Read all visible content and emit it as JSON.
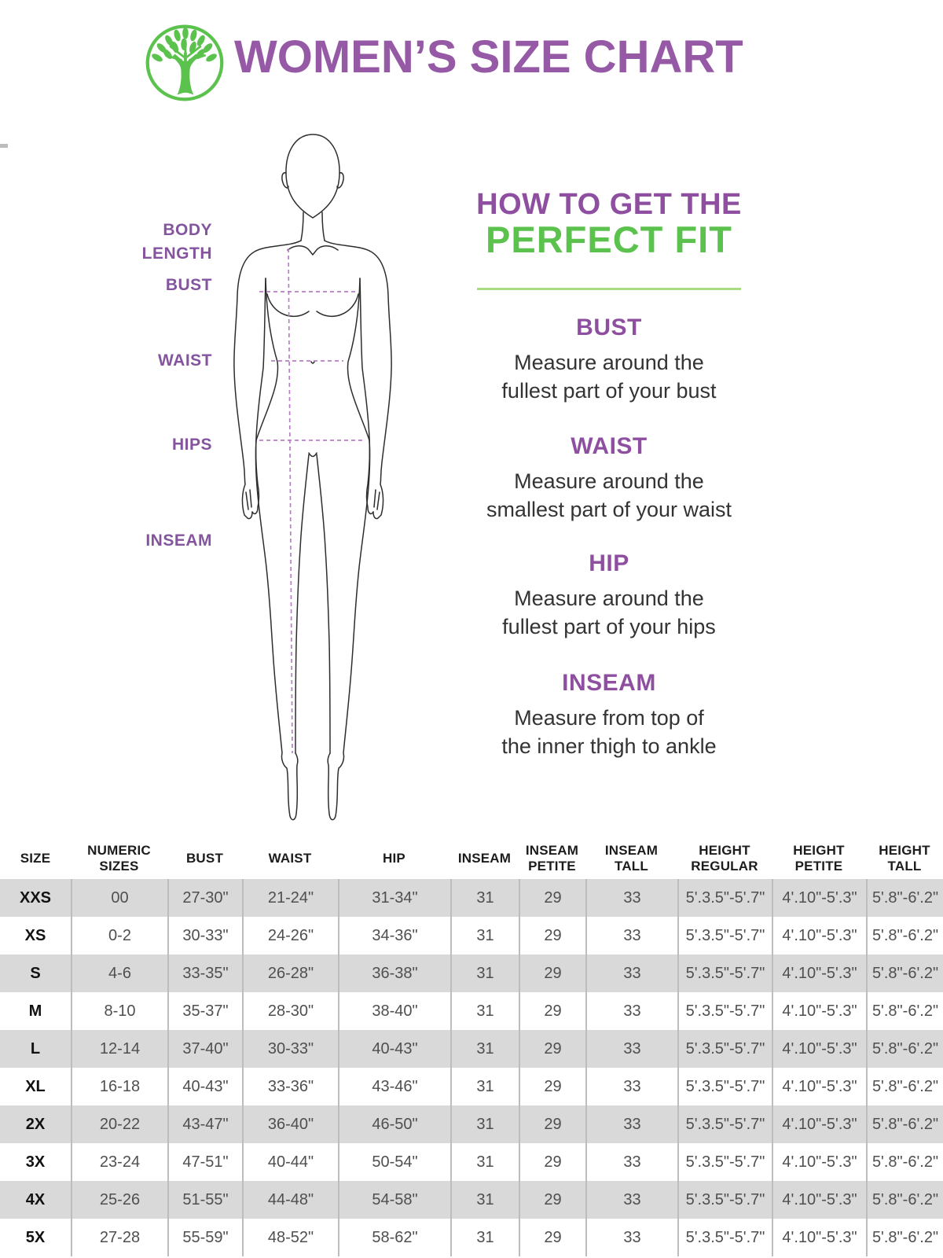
{
  "header": {
    "logo": "tree-in-circle-logo",
    "title": "WOMEN’S SIZE CHART"
  },
  "figure": {
    "labels": [
      "BODY LENGTH",
      "BUST",
      "WAIST",
      "HIPS",
      "INSEAM"
    ]
  },
  "howto": {
    "title_line1": "HOW TO GET THE",
    "title_line2": "PERFECT FIT",
    "sections": [
      {
        "heading": "BUST",
        "body": "Measure around the\nfullest part of your bust"
      },
      {
        "heading": "WAIST",
        "body": "Measure around the\nsmallest part of your waist"
      },
      {
        "heading": "HIP",
        "body": "Measure around the\nfullest part of your hips"
      },
      {
        "heading": "INSEAM",
        "body": "Measure from top of\nthe inner thigh to ankle"
      }
    ]
  },
  "table": {
    "columns": [
      "SIZE",
      "NUMERIC\nSIZES",
      "BUST",
      "WAIST",
      "HIP",
      "INSEAM",
      "INSEAM\nPETITE",
      "INSEAM\nTALL",
      "HEIGHT\nREGULAR",
      "HEIGHT\nPETITE",
      "HEIGHT\nTALL"
    ],
    "rows": [
      [
        "XXS",
        "00",
        "27-30\"",
        "21-24\"",
        "31-34\"",
        "31",
        "29",
        "33",
        "5'.3.5\"-5'.7\"",
        "4'.10\"-5'.3\"",
        "5'.8\"-6'.2\""
      ],
      [
        "XS",
        "0-2",
        "30-33\"",
        "24-26\"",
        "34-36\"",
        "31",
        "29",
        "33",
        "5'.3.5\"-5'.7\"",
        "4'.10\"-5'.3\"",
        "5'.8\"-6'.2\""
      ],
      [
        "S",
        "4-6",
        "33-35\"",
        "26-28\"",
        "36-38\"",
        "31",
        "29",
        "33",
        "5'.3.5\"-5'.7\"",
        "4'.10\"-5'.3\"",
        "5'.8\"-6'.2\""
      ],
      [
        "M",
        "8-10",
        "35-37\"",
        "28-30\"",
        "38-40\"",
        "31",
        "29",
        "33",
        "5'.3.5\"-5'.7\"",
        "4'.10\"-5'.3\"",
        "5'.8\"-6'.2\""
      ],
      [
        "L",
        "12-14",
        "37-40\"",
        "30-33\"",
        "40-43\"",
        "31",
        "29",
        "33",
        "5'.3.5\"-5'.7\"",
        "4'.10\"-5'.3\"",
        "5'.8\"-6'.2\""
      ],
      [
        "XL",
        "16-18",
        "40-43\"",
        "33-36\"",
        "43-46\"",
        "31",
        "29",
        "33",
        "5'.3.5\"-5'.7\"",
        "4'.10\"-5'.3\"",
        "5'.8\"-6'.2\""
      ],
      [
        "2X",
        "20-22",
        "43-47\"",
        "36-40\"",
        "46-50\"",
        "31",
        "29",
        "33",
        "5'.3.5\"-5'.7\"",
        "4'.10\"-5'.3\"",
        "5'.8\"-6'.2\""
      ],
      [
        "3X",
        "23-24",
        "47-51\"",
        "40-44\"",
        "50-54\"",
        "31",
        "29",
        "33",
        "5'.3.5\"-5'.7\"",
        "4'.10\"-5'.3\"",
        "5'.8\"-6'.2\""
      ],
      [
        "4X",
        "25-26",
        "51-55\"",
        "44-48\"",
        "54-58\"",
        "31",
        "29",
        "33",
        "5'.3.5\"-5'.7\"",
        "4'.10\"-5'.3\"",
        "5'.8\"-6'.2\""
      ],
      [
        "5X",
        "27-28",
        "55-59\"",
        "48-52\"",
        "58-62\"",
        "31",
        "29",
        "33",
        "5'.3.5\"-5'.7\"",
        "4'.10\"-5'.3\"",
        "5'.8\"-6'.2\""
      ]
    ]
  },
  "colors": {
    "title_purple": "#9559a6",
    "accent_purple": "#8e4fa0",
    "label_purple": "#84549e",
    "brand_green": "#5cc24e",
    "divider_green": "#a8dc82",
    "dash_purple": "#b87fc6",
    "row_gray": "#d9d9d9",
    "column_divider_gray": "#bdbdbd",
    "body_text": "#333333",
    "table_text": "#4f4f4f"
  }
}
